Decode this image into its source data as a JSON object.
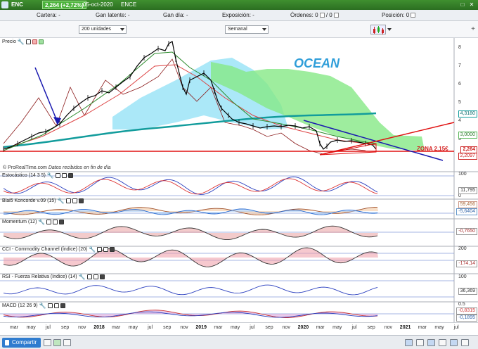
{
  "window": {
    "symbol": "ENC",
    "price_change": "2,264 (+2,72%)",
    "date": "05-oct-2020",
    "name": "ENCE",
    "close_icon": "close-icon",
    "maximize_icon": "maximize-icon"
  },
  "position_bar": {
    "cartera_label": "Cartera:",
    "cartera_value": "-",
    "gan_latente_label": "Gan latente:",
    "gan_latente_value": "-",
    "gan_dia_label": "Gan día:",
    "gan_dia_value": "-",
    "exposicion_label": "Exposición:",
    "exposicion_value": "-",
    "ordenes_label": "Órdenes:",
    "ordenes_value_1": "0",
    "ordenes_value_2": "0",
    "posicion_label": "Posición:",
    "posicion_value": "0"
  },
  "toolbar": {
    "units_select": "200 unidades",
    "period_select": "Semanal",
    "chart_type_icon": "candlestick-chart-icon"
  },
  "chart": {
    "annotation_ocean": "OCEAN",
    "annotation_zona": "ZONA 2,15€",
    "credit_source": "© ProRealTime.com",
    "credit_note": "Datos recibidos en fin de día",
    "colors": {
      "candles": "#000000",
      "kumo_green": "#86e886",
      "kumo_cyan": "#8fe0f5",
      "ma_teal": "#129c9c",
      "support_red": "#e01010",
      "trend_blue": "#1a1ab0",
      "ma_darkred": "#8b1a1a"
    }
  },
  "panels": {
    "precio": {
      "label": "Precio",
      "axis": [
        "8",
        "7",
        "6",
        "5",
        "4",
        "3"
      ],
      "tags": [
        "4,3180",
        "3,0000",
        "2,264",
        "2,2097"
      ]
    },
    "estocastico": {
      "label": "Estocástico (14 3 5)",
      "axis": [
        "100",
        "0"
      ],
      "tags": [
        "11,795"
      ]
    },
    "koncorde": {
      "label": "Blai5 Koncorde v.09 (15)",
      "axis": [
        "0"
      ],
      "tags": [
        "59,456",
        "-5,6404"
      ]
    },
    "momentum": {
      "label": "Momentum (12)",
      "axis": [
        "0"
      ],
      "tags": [
        "-0,7650"
      ]
    },
    "cci": {
      "label": "CCI - Commodity Channel (índice) (20)",
      "axis": [
        "200",
        "0"
      ],
      "tags": [
        "-174,14"
      ]
    },
    "rsi": {
      "label": "RSI - Fuerza Relativa (índice) (14)",
      "axis": [
        "100",
        "0"
      ],
      "tags": [
        "36,369"
      ]
    },
    "macd": {
      "label": "MACD (12 26 9)",
      "axis": [
        "0.5",
        "0"
      ],
      "tags": [
        "-0,8315",
        "-0,1895"
      ]
    }
  },
  "time_axis": [
    {
      "label": "mar",
      "year": false
    },
    {
      "label": "may",
      "year": false
    },
    {
      "label": "jul",
      "year": false
    },
    {
      "label": "sep",
      "year": false
    },
    {
      "label": "nov",
      "year": false
    },
    {
      "label": "2018",
      "year": true
    },
    {
      "label": "mar",
      "year": false
    },
    {
      "label": "may",
      "year": false
    },
    {
      "label": "jul",
      "year": false
    },
    {
      "label": "sep",
      "year": false
    },
    {
      "label": "nov",
      "year": false
    },
    {
      "label": "2019",
      "year": true
    },
    {
      "label": "mar",
      "year": false
    },
    {
      "label": "may",
      "year": false
    },
    {
      "label": "jul",
      "year": false
    },
    {
      "label": "sep",
      "year": false
    },
    {
      "label": "nov",
      "year": false
    },
    {
      "label": "2020",
      "year": true
    },
    {
      "label": "mar",
      "year": false
    },
    {
      "label": "may",
      "year": false
    },
    {
      "label": "jul",
      "year": false
    },
    {
      "label": "sep",
      "year": false
    },
    {
      "label": "nov",
      "year": false
    },
    {
      "label": "2021",
      "year": true
    },
    {
      "label": "mar",
      "year": false
    },
    {
      "label": "may",
      "year": false
    },
    {
      "label": "jul",
      "year": false
    }
  ],
  "bottom_bar": {
    "share_label": "Compartir"
  }
}
